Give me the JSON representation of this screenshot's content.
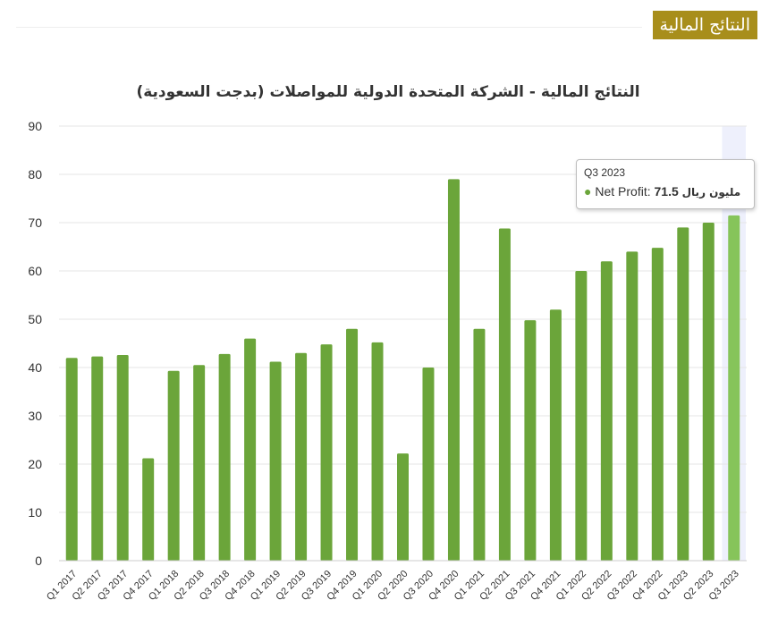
{
  "header": {
    "badge": "النتائج المالية"
  },
  "chart_data": {
    "type": "bar",
    "title": "النتائج المالية - الشركة المتحدة الدولية للمواصلات (بدجت السعودية)",
    "xlabel": "",
    "ylabel": "",
    "ylim": [
      0,
      90
    ],
    "yticks": [
      "0",
      "10",
      "20",
      "30",
      "40",
      "50",
      "60",
      "70",
      "80",
      "90"
    ],
    "grid": true,
    "categories": [
      "Q1 2017",
      "Q2 2017",
      "Q3 2017",
      "Q4 2017",
      "Q1 2018",
      "Q2 2018",
      "Q3 2018",
      "Q4 2018",
      "Q1 2019",
      "Q2 2019",
      "Q3 2019",
      "Q4 2019",
      "Q1 2020",
      "Q2 2020",
      "Q3 2020",
      "Q4 2020",
      "Q1 2021",
      "Q2 2021",
      "Q3 2021",
      "Q4 2021",
      "Q1 2022",
      "Q2 2022",
      "Q3 2022",
      "Q4 2022",
      "Q1 2023",
      "Q2 2023",
      "Q3 2023"
    ],
    "series": [
      {
        "name": "Net Profit",
        "values": [
          42.0,
          42.3,
          42.6,
          21.2,
          39.3,
          40.5,
          42.8,
          46.0,
          41.2,
          43.0,
          44.8,
          48.0,
          45.2,
          22.2,
          40.0,
          79.0,
          48.0,
          68.8,
          49.8,
          52.0,
          60.0,
          62.0,
          64.0,
          64.8,
          69.0,
          70.0,
          71.5
        ]
      }
    ],
    "colors": {
      "bar": "#6ba53a",
      "bar_highlight": "#86c45a",
      "hover_band": "#eef0fc",
      "grid": "#e6e6e6"
    },
    "highlighted_index": 26
  },
  "tooltip": {
    "category": "Q3 2023",
    "series_label": "Net Profit:",
    "value": "71.5",
    "unit": "مليون ريال"
  }
}
